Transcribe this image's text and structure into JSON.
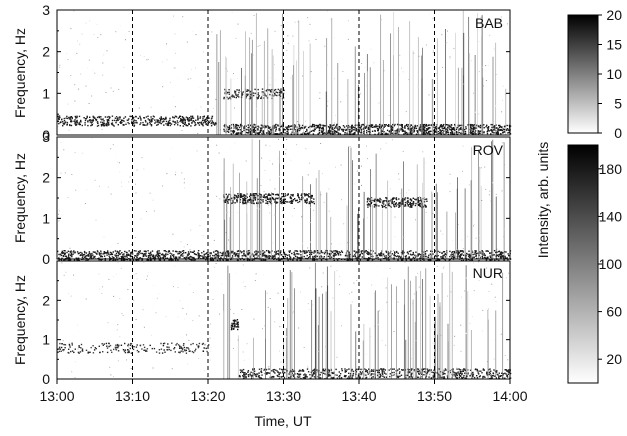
{
  "chart_data": {
    "type": "heatmap",
    "xlabel": "Time, UT",
    "x_ticks": [
      "13:00",
      "13:10",
      "13:20",
      "13:30",
      "13:40",
      "13:50",
      "14:00"
    ],
    "xlim": [
      "13:00",
      "14:00"
    ],
    "grid": "dashed vertical lines every 10 min",
    "panels": [
      {
        "station": "BAB",
        "ylabel": "Frequency, Hz",
        "ylim": [
          0,
          3
        ],
        "y_ticks": [
          "0",
          "1",
          "2",
          "3"
        ],
        "colorbar": {
          "range": [
            0,
            20
          ],
          "ticks": [
            "0",
            "5",
            "10",
            "15",
            "20"
          ]
        },
        "features": [
          {
            "start": "13:00",
            "end": "13:21",
            "freq_hz": 0.35,
            "level": 14
          },
          {
            "start": "13:22",
            "end": "14:00",
            "freq_hz": 0.15,
            "level": 18
          },
          {
            "start": "13:22",
            "end": "13:30",
            "freq_hz": 1.0,
            "level": 10
          }
        ]
      },
      {
        "station": "ROV",
        "ylabel": "Frequency, Hz",
        "ylim": [
          0,
          3
        ],
        "y_ticks": [
          "0",
          "1",
          "2",
          "3"
        ],
        "colorbar": {
          "range": [
            0,
            200
          ],
          "ticks": [
            "20",
            "60",
            "100",
            "140",
            "180"
          ],
          "label": "Intensity, arb. units"
        },
        "features": [
          {
            "start": "13:00",
            "end": "14:00",
            "freq_hz": 0.1,
            "level": 150
          },
          {
            "start": "13:22",
            "end": "13:34",
            "freq_hz": 1.5,
            "level": 170
          },
          {
            "start": "13:41",
            "end": "13:49",
            "freq_hz": 1.4,
            "level": 160
          }
        ]
      },
      {
        "station": "NUR",
        "ylabel": "Frequency, Hz",
        "ylim": [
          0,
          3
        ],
        "y_ticks": [
          "0",
          "1",
          "2"
        ],
        "features": [
          {
            "start": "13:00",
            "end": "13:20",
            "freq_hz": 0.8,
            "level": 60
          },
          {
            "start": "13:23",
            "end": "13:24",
            "freq_hz": 1.4,
            "level": 180
          },
          {
            "start": "13:24",
            "end": "14:00",
            "freq_hz": 0.15,
            "level": 120
          }
        ]
      }
    ]
  }
}
